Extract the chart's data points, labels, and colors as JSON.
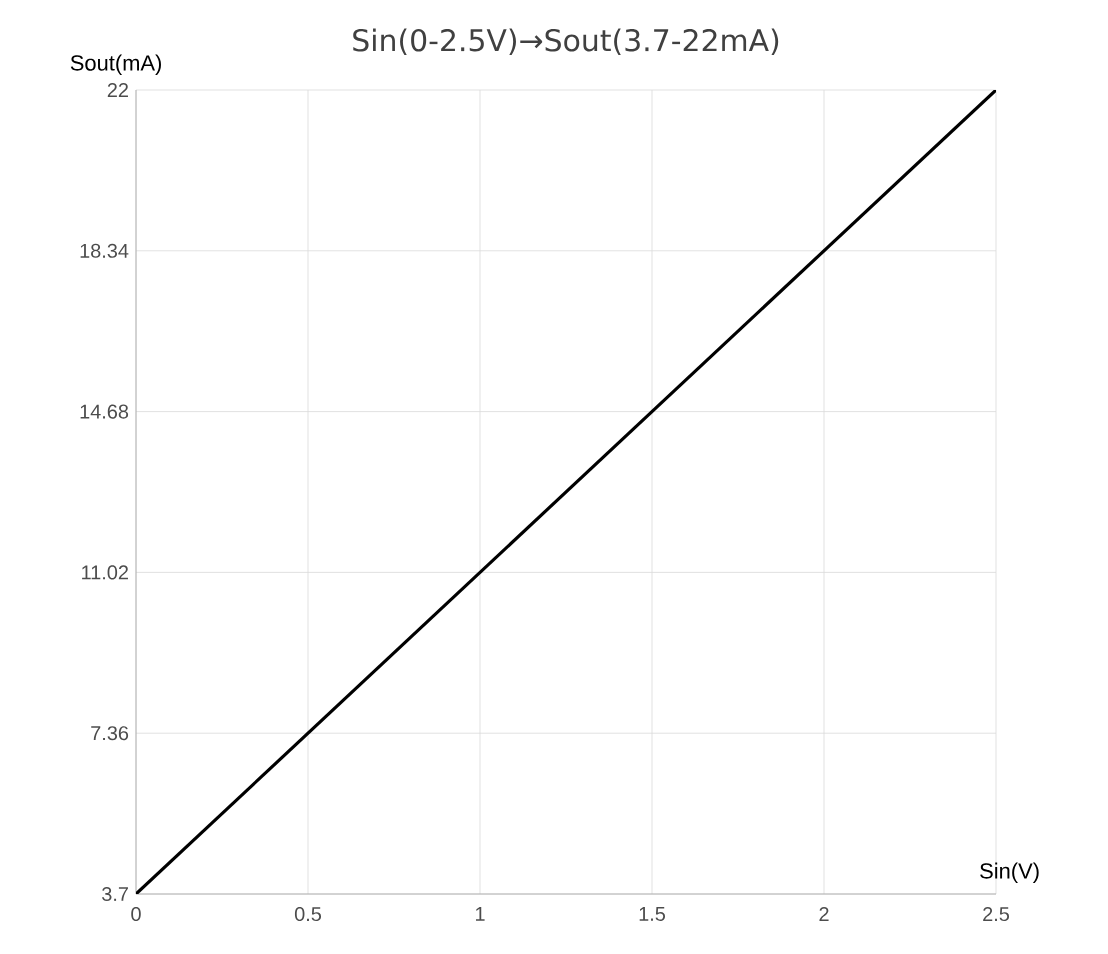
{
  "chart_data": {
    "type": "line",
    "title": "Sin(0-2.5V)→Sout(3.7-22mA)",
    "xlabel": "Sin(V)",
    "ylabel": "Sout(mA)",
    "x": [
      0,
      2.5
    ],
    "series": [
      {
        "color": "#000000",
        "values": [
          3.7,
          22
        ]
      }
    ],
    "xlim": [
      0,
      2.5
    ],
    "ylim": [
      3.7,
      22
    ],
    "xticks": [
      0,
      0.5,
      1,
      1.5,
      2,
      2.5
    ],
    "yticks": [
      3.7,
      7.36,
      11.02,
      14.68,
      18.34,
      22
    ],
    "grid": true,
    "marker": "none",
    "line_style": "solid"
  }
}
